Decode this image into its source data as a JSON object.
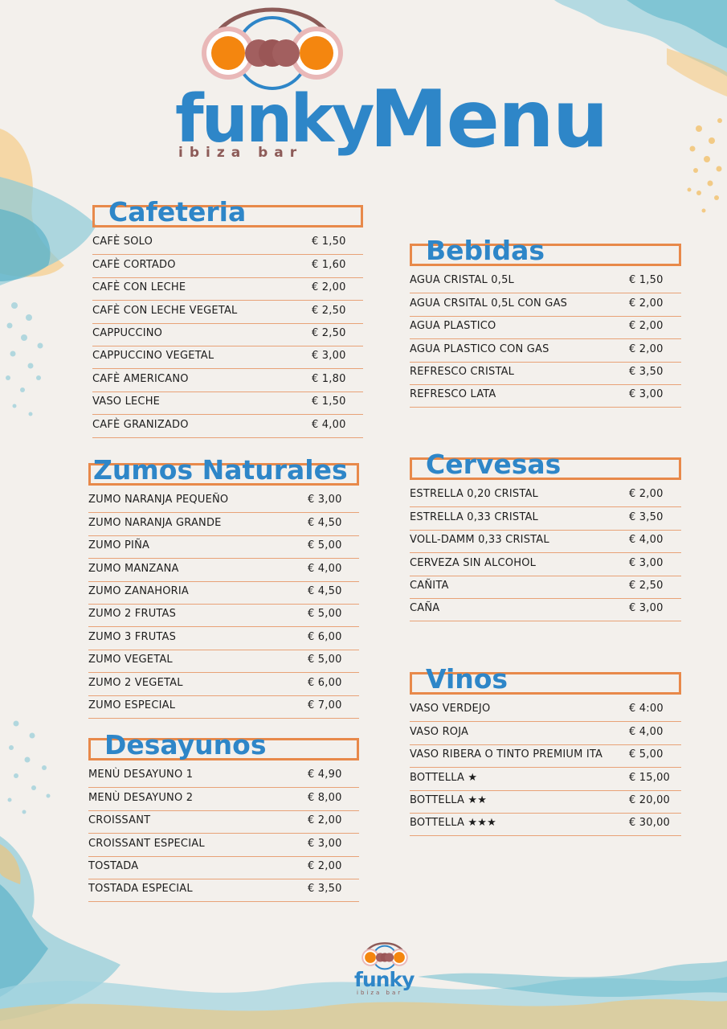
{
  "brand": {
    "name": "funky",
    "subtitle": "ibiza bar",
    "title": "Menu"
  },
  "sections": {
    "cafeteria": {
      "title": "Cafeteria",
      "items": [
        {
          "name": "CAFÈ SOLO",
          "price": "€ 1,50"
        },
        {
          "name": "CAFÈ CORTADO",
          "price": "€ 1,60"
        },
        {
          "name": "CAFÈ CON LECHE",
          "price": "€ 2,00"
        },
        {
          "name": "CAFÈ CON LECHE VEGETAL",
          "price": "€ 2,50"
        },
        {
          "name": "CAPPUCCINO",
          "price": "€ 2,50"
        },
        {
          "name": "CAPPUCCINO VEGETAL",
          "price": "€ 3,00"
        },
        {
          "name": "CAFÈ AMERICANO",
          "price": "€ 1,80"
        },
        {
          "name": "VASO LECHE",
          "price": "€ 1,50"
        },
        {
          "name": "CAFÈ GRANIZADO",
          "price": "€ 4,00"
        }
      ]
    },
    "zumos": {
      "title": "Zumos Naturales",
      "items": [
        {
          "name": "ZUMO NARANJA PEQUEÑO",
          "price": "€ 3,00"
        },
        {
          "name": "ZUMO NARANJA GRANDE",
          "price": "€ 4,50"
        },
        {
          "name": "ZUMO PIÑA",
          "price": "€ 5,00"
        },
        {
          "name": "ZUMO MANZANA",
          "price": "€ 4,00"
        },
        {
          "name": "ZUMO ZANAHORIA",
          "price": "€ 4,50"
        },
        {
          "name": "ZUMO 2 FRUTAS",
          "price": "€ 5,00"
        },
        {
          "name": "ZUMO 3 FRUTAS",
          "price": "€ 6,00"
        },
        {
          "name": "ZUMO VEGETAL",
          "price": "€ 5,00"
        },
        {
          "name": "ZUMO 2 VEGETAL",
          "price": "€ 6,00"
        },
        {
          "name": "ZUMO ESPECIAL",
          "price": "€ 7,00"
        }
      ]
    },
    "desayunos": {
      "title": "Desayunos",
      "items": [
        {
          "name": "MENÙ DESAYUNO 1",
          "price": "€ 4,90"
        },
        {
          "name": "MENÙ DESAYUNO 2",
          "price": "€ 8,00"
        },
        {
          "name": "CROISSANT",
          "price": "€ 2,00"
        },
        {
          "name": "CROISSANT ESPECIAL",
          "price": "€ 3,00"
        },
        {
          "name": "TOSTADA",
          "price": "€ 2,00"
        },
        {
          "name": "TOSTADA ESPECIAL",
          "price": "€ 3,50"
        }
      ]
    },
    "bebidas": {
      "title": "Bebidas",
      "items": [
        {
          "name": "AGUA CRISTAL 0,5L",
          "price": "€ 1,50"
        },
        {
          "name": "AGUA CRSITAL 0,5L CON GAS",
          "price": "€ 2,00"
        },
        {
          "name": "AGUA PLASTICO",
          "price": "€ 2,00"
        },
        {
          "name": "AGUA PLASTICO CON GAS",
          "price": "€ 2,00"
        },
        {
          "name": "REFRESCO CRISTAL",
          "price": "€ 3,50"
        },
        {
          "name": "REFRESCO LATA",
          "price": "€ 3,00"
        }
      ]
    },
    "cervesas": {
      "title": "Cervesas",
      "items": [
        {
          "name": "ESTRELLA 0,20 CRISTAL",
          "price": "€ 2,00"
        },
        {
          "name": "ESTRELLA 0,33 CRISTAL",
          "price": "€ 3,50"
        },
        {
          "name": "VOLL-DAMM 0,33 CRISTAL",
          "price": "€ 4,00"
        },
        {
          "name": "CERVEZA SIN ALCOHOL",
          "price": "€ 3,00"
        },
        {
          "name": "CAÑITA",
          "price": "€ 2,50"
        },
        {
          "name": "CAÑA",
          "price": "€ 3,00"
        }
      ]
    },
    "vinos": {
      "title": "Vinos",
      "items": [
        {
          "name": "VASO VERDEJO",
          "price": "€ 4:00"
        },
        {
          "name": "VASO ROJA",
          "price": "€ 4,00"
        },
        {
          "name": "VASO RIBERA O TINTO PREMIUM ITA",
          "price": "€ 5,00"
        },
        {
          "name": "BOTTELLA ★",
          "price": "€ 15,00"
        },
        {
          "name": "BOTTELLA ★★",
          "price": "€ 20,00"
        },
        {
          "name": "BOTTELLA ★★★",
          "price": "€ 30,00"
        }
      ]
    }
  },
  "colors": {
    "accent_blue": "#2e86c8",
    "accent_orange": "#e8894a",
    "brand_brown": "#8d5b58",
    "paper": "#f3f0ec"
  }
}
